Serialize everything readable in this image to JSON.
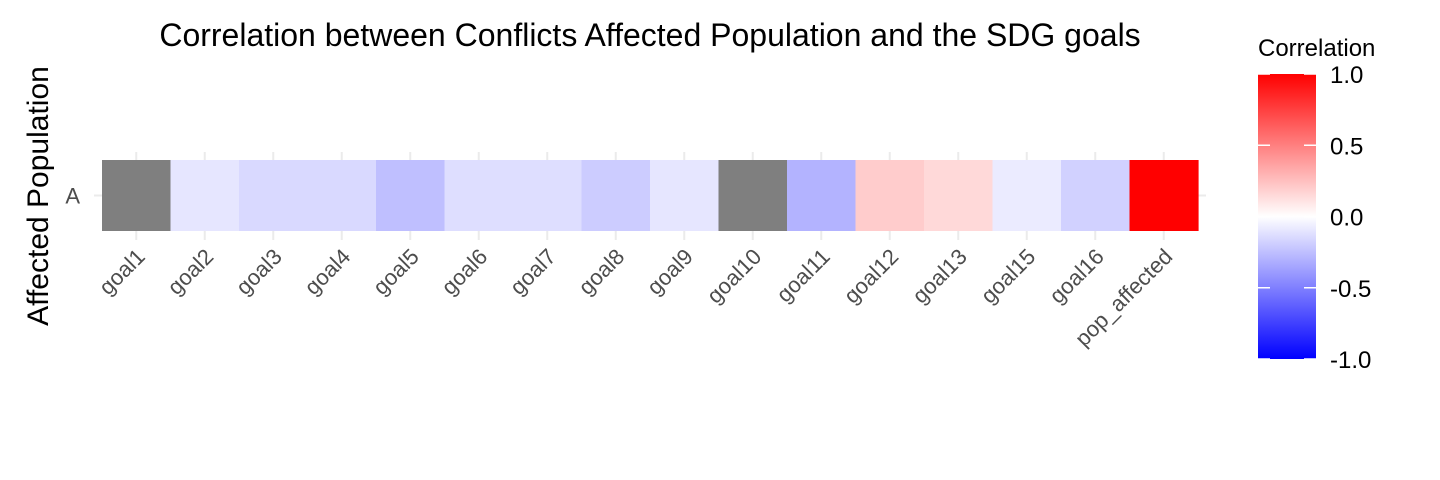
{
  "chart_data": {
    "type": "heatmap",
    "title": "Correlation between Conflicts Affected Population and the SDG goals",
    "ylabel": "Affected Population",
    "xlabel": "",
    "y_categories": [
      "A"
    ],
    "x_categories": [
      "goal1",
      "goal2",
      "goal3",
      "goal4",
      "goal5",
      "goal6",
      "goal7",
      "goal8",
      "goal9",
      "goal10",
      "goal11",
      "goal12",
      "goal13",
      "goal15",
      "goal16",
      "pop_affected"
    ],
    "values": [
      null,
      -0.1,
      -0.15,
      -0.15,
      -0.25,
      -0.13,
      -0.13,
      -0.2,
      -0.1,
      null,
      -0.3,
      0.2,
      0.15,
      -0.08,
      -0.18,
      1.0
    ],
    "na_color": "#7f7f7f",
    "color_scale": {
      "low": "#0000ff",
      "mid": "#ffffff",
      "high": "#ff0000",
      "limits": [
        -1,
        1
      ]
    },
    "legend": {
      "title": "Correlation",
      "ticks": [
        "1.0",
        "0.5",
        "0.0",
        "-0.5",
        "-1.0"
      ],
      "tick_values": [
        1.0,
        0.5,
        0.0,
        -0.5,
        -1.0
      ],
      "position": "right"
    },
    "grid": true
  }
}
